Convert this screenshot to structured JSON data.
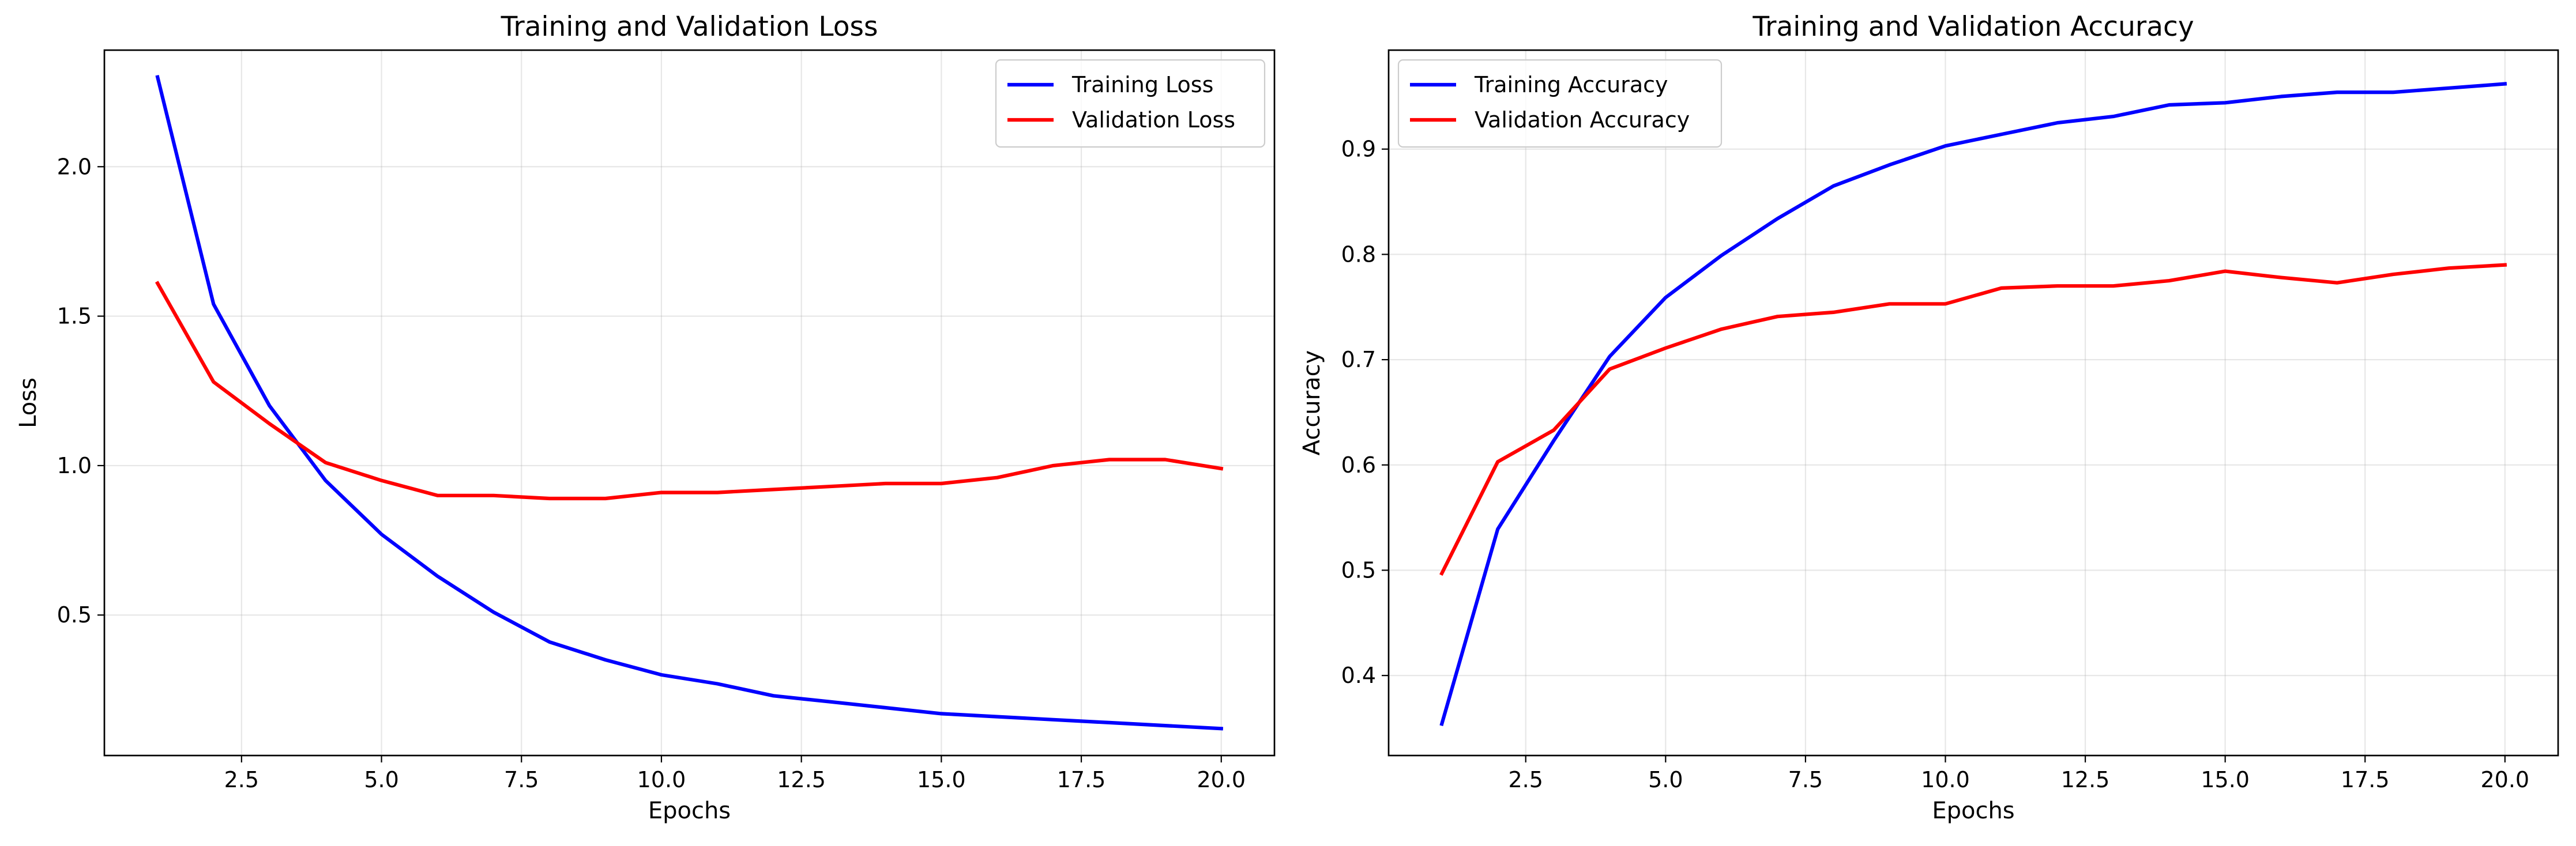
{
  "chart_data": [
    {
      "type": "line",
      "title": "Training and Validation Loss",
      "xlabel": "Epochs",
      "ylabel": "Loss",
      "xlim": [
        0.05,
        20.95
      ],
      "ylim": [
        0.03,
        2.39
      ],
      "xticks": [
        2.5,
        5.0,
        7.5,
        10.0,
        12.5,
        15.0,
        17.5,
        20.0
      ],
      "xtick_labels": [
        "2.5",
        "5.0",
        "7.5",
        "10.0",
        "12.5",
        "15.0",
        "17.5",
        "20.0"
      ],
      "yticks": [
        0.5,
        1.0,
        1.5,
        2.0
      ],
      "ytick_labels": [
        "0.5",
        "1.0",
        "1.5",
        "2.0"
      ],
      "grid": true,
      "legend_position": "top-right",
      "x": [
        1,
        2,
        3,
        4,
        5,
        6,
        7,
        8,
        9,
        10,
        11,
        12,
        13,
        14,
        15,
        16,
        17,
        18,
        19,
        20
      ],
      "series": [
        {
          "name": "Training Loss",
          "color": "#0000ff",
          "values": [
            2.3,
            1.54,
            1.2,
            0.95,
            0.77,
            0.63,
            0.51,
            0.41,
            0.35,
            0.3,
            0.27,
            0.23,
            0.21,
            0.19,
            0.17,
            0.16,
            0.15,
            0.14,
            0.13,
            0.12
          ]
        },
        {
          "name": "Validation Loss",
          "color": "#ff0000",
          "values": [
            1.61,
            1.28,
            1.14,
            1.01,
            0.95,
            0.9,
            0.9,
            0.89,
            0.89,
            0.91,
            0.91,
            0.92,
            0.93,
            0.94,
            0.94,
            0.96,
            1.0,
            1.02,
            1.02,
            0.99
          ]
        }
      ]
    },
    {
      "type": "line",
      "title": "Training and Validation Accuracy",
      "xlabel": "Epochs",
      "ylabel": "Accuracy",
      "xlim": [
        0.05,
        20.95
      ],
      "ylim": [
        0.324,
        0.994
      ],
      "xticks": [
        2.5,
        5.0,
        7.5,
        10.0,
        12.5,
        15.0,
        17.5,
        20.0
      ],
      "xtick_labels": [
        "2.5",
        "5.0",
        "7.5",
        "10.0",
        "12.5",
        "15.0",
        "17.5",
        "20.0"
      ],
      "yticks": [
        0.4,
        0.5,
        0.6,
        0.7,
        0.8,
        0.9
      ],
      "ytick_labels": [
        "0.4",
        "0.5",
        "0.6",
        "0.7",
        "0.8",
        "0.9"
      ],
      "grid": true,
      "legend_position": "top-left",
      "x": [
        1,
        2,
        3,
        4,
        5,
        6,
        7,
        8,
        9,
        10,
        11,
        12,
        13,
        14,
        15,
        16,
        17,
        18,
        19,
        20
      ],
      "series": [
        {
          "name": "Training Accuracy",
          "color": "#0000ff",
          "values": [
            0.354,
            0.539,
            0.623,
            0.703,
            0.759,
            0.799,
            0.834,
            0.865,
            0.885,
            0.903,
            0.914,
            0.925,
            0.931,
            0.942,
            0.944,
            0.95,
            0.954,
            0.954,
            0.958,
            0.962
          ]
        },
        {
          "name": "Validation Accuracy",
          "color": "#ff0000",
          "values": [
            0.497,
            0.603,
            0.633,
            0.691,
            0.711,
            0.729,
            0.741,
            0.745,
            0.753,
            0.753,
            0.768,
            0.77,
            0.77,
            0.775,
            0.784,
            0.778,
            0.773,
            0.781,
            0.787,
            0.79
          ]
        }
      ]
    }
  ]
}
